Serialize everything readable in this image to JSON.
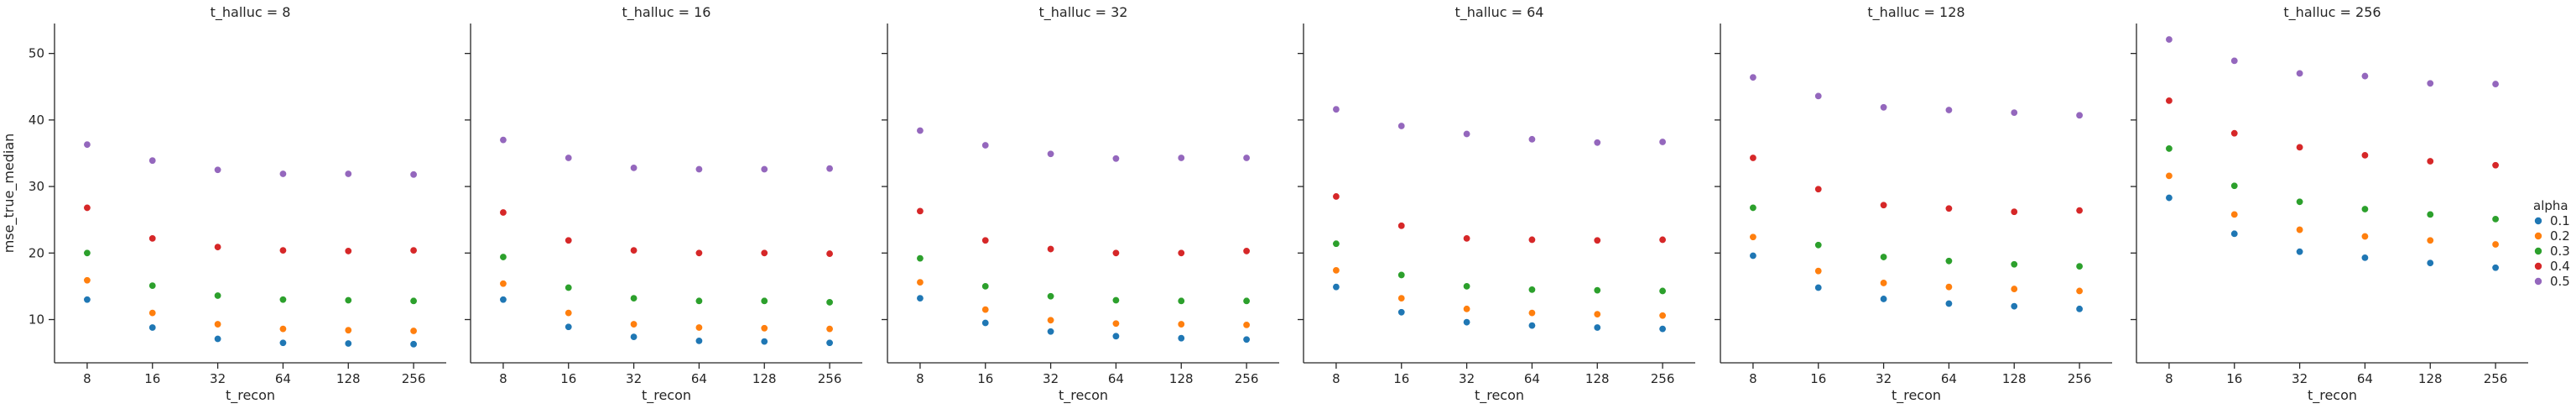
{
  "chart_data": {
    "type": "scatter",
    "facet_label": "t_halluc",
    "ylabel": "mse_true_median",
    "xlabel": "t_recon",
    "x_categories": [
      "8",
      "16",
      "32",
      "64",
      "128",
      "256"
    ],
    "yticks": [
      10,
      20,
      30,
      40,
      50
    ],
    "ylim": [
      3.5,
      54.5
    ],
    "legend": {
      "title": "alpha",
      "placement": "right"
    },
    "series_meta": [
      {
        "name": "0.1",
        "color": "#1f77b4"
      },
      {
        "name": "0.2",
        "color": "#ff7f0e"
      },
      {
        "name": "0.3",
        "color": "#2ca02c"
      },
      {
        "name": "0.4",
        "color": "#d62728"
      },
      {
        "name": "0.5",
        "color": "#9467bd"
      }
    ],
    "panels": [
      {
        "title": "t_halluc = 8",
        "series": [
          {
            "name": "0.1",
            "values": [
              13.0,
              8.8,
              7.1,
              6.5,
              6.4,
              6.3
            ]
          },
          {
            "name": "0.2",
            "values": [
              15.9,
              11.0,
              9.3,
              8.6,
              8.4,
              8.3
            ]
          },
          {
            "name": "0.3",
            "values": [
              20.0,
              15.1,
              13.6,
              13.0,
              12.9,
              12.8
            ]
          },
          {
            "name": "0.4",
            "values": [
              26.8,
              22.2,
              20.9,
              20.4,
              20.3,
              20.4
            ]
          },
          {
            "name": "0.5",
            "values": [
              36.3,
              33.9,
              32.5,
              31.9,
              31.9,
              31.8
            ]
          }
        ]
      },
      {
        "title": "t_halluc = 16",
        "series": [
          {
            "name": "0.1",
            "values": [
              13.0,
              8.9,
              7.4,
              6.8,
              6.7,
              6.5
            ]
          },
          {
            "name": "0.2",
            "values": [
              15.4,
              11.0,
              9.3,
              8.8,
              8.7,
              8.6
            ]
          },
          {
            "name": "0.3",
            "values": [
              19.4,
              14.8,
              13.2,
              12.8,
              12.8,
              12.6
            ]
          },
          {
            "name": "0.4",
            "values": [
              26.1,
              21.9,
              20.4,
              20.0,
              20.0,
              19.9
            ]
          },
          {
            "name": "0.5",
            "values": [
              37.0,
              34.3,
              32.8,
              32.6,
              32.6,
              32.7
            ]
          }
        ]
      },
      {
        "title": "t_halluc = 32",
        "series": [
          {
            "name": "0.1",
            "values": [
              13.2,
              9.5,
              8.2,
              7.5,
              7.2,
              7.0
            ]
          },
          {
            "name": "0.2",
            "values": [
              15.6,
              11.5,
              9.9,
              9.4,
              9.3,
              9.2
            ]
          },
          {
            "name": "0.3",
            "values": [
              19.2,
              15.0,
              13.5,
              12.9,
              12.8,
              12.8
            ]
          },
          {
            "name": "0.4",
            "values": [
              26.3,
              21.9,
              20.6,
              20.0,
              20.0,
              20.3
            ]
          },
          {
            "name": "0.5",
            "values": [
              38.4,
              36.2,
              34.9,
              34.2,
              34.3,
              34.3
            ]
          }
        ]
      },
      {
        "title": "t_halluc = 64",
        "series": [
          {
            "name": "0.1",
            "values": [
              14.9,
              11.1,
              9.6,
              9.1,
              8.8,
              8.6
            ]
          },
          {
            "name": "0.2",
            "values": [
              17.4,
              13.2,
              11.6,
              11.0,
              10.8,
              10.6
            ]
          },
          {
            "name": "0.3",
            "values": [
              21.4,
              16.7,
              15.0,
              14.5,
              14.4,
              14.3
            ]
          },
          {
            "name": "0.4",
            "values": [
              28.5,
              24.1,
              22.2,
              22.0,
              21.9,
              22.0
            ]
          },
          {
            "name": "0.5",
            "values": [
              41.6,
              39.1,
              37.9,
              37.1,
              36.6,
              36.7
            ]
          }
        ]
      },
      {
        "title": "t_halluc = 128",
        "series": [
          {
            "name": "0.1",
            "values": [
              19.6,
              14.8,
              13.1,
              12.4,
              12.0,
              11.6
            ]
          },
          {
            "name": "0.2",
            "values": [
              22.4,
              17.3,
              15.5,
              14.9,
              14.6,
              14.3
            ]
          },
          {
            "name": "0.3",
            "values": [
              26.8,
              21.2,
              19.4,
              18.8,
              18.3,
              18.0
            ]
          },
          {
            "name": "0.4",
            "values": [
              34.3,
              29.6,
              27.2,
              26.7,
              26.2,
              26.4
            ]
          },
          {
            "name": "0.5",
            "values": [
              46.4,
              43.6,
              41.9,
              41.5,
              41.1,
              40.7
            ]
          }
        ]
      },
      {
        "title": "t_halluc = 256",
        "series": [
          {
            "name": "0.1",
            "values": [
              28.3,
              22.9,
              20.2,
              19.3,
              18.5,
              17.8
            ]
          },
          {
            "name": "0.2",
            "values": [
              31.6,
              25.8,
              23.5,
              22.5,
              21.9,
              21.3
            ]
          },
          {
            "name": "0.3",
            "values": [
              35.7,
              30.1,
              27.7,
              26.6,
              25.8,
              25.1
            ]
          },
          {
            "name": "0.4",
            "values": [
              42.9,
              38.0,
              35.9,
              34.7,
              33.8,
              33.2
            ]
          },
          {
            "name": "0.5",
            "values": [
              52.1,
              48.9,
              47.0,
              46.6,
              45.5,
              45.4
            ]
          }
        ]
      }
    ]
  }
}
